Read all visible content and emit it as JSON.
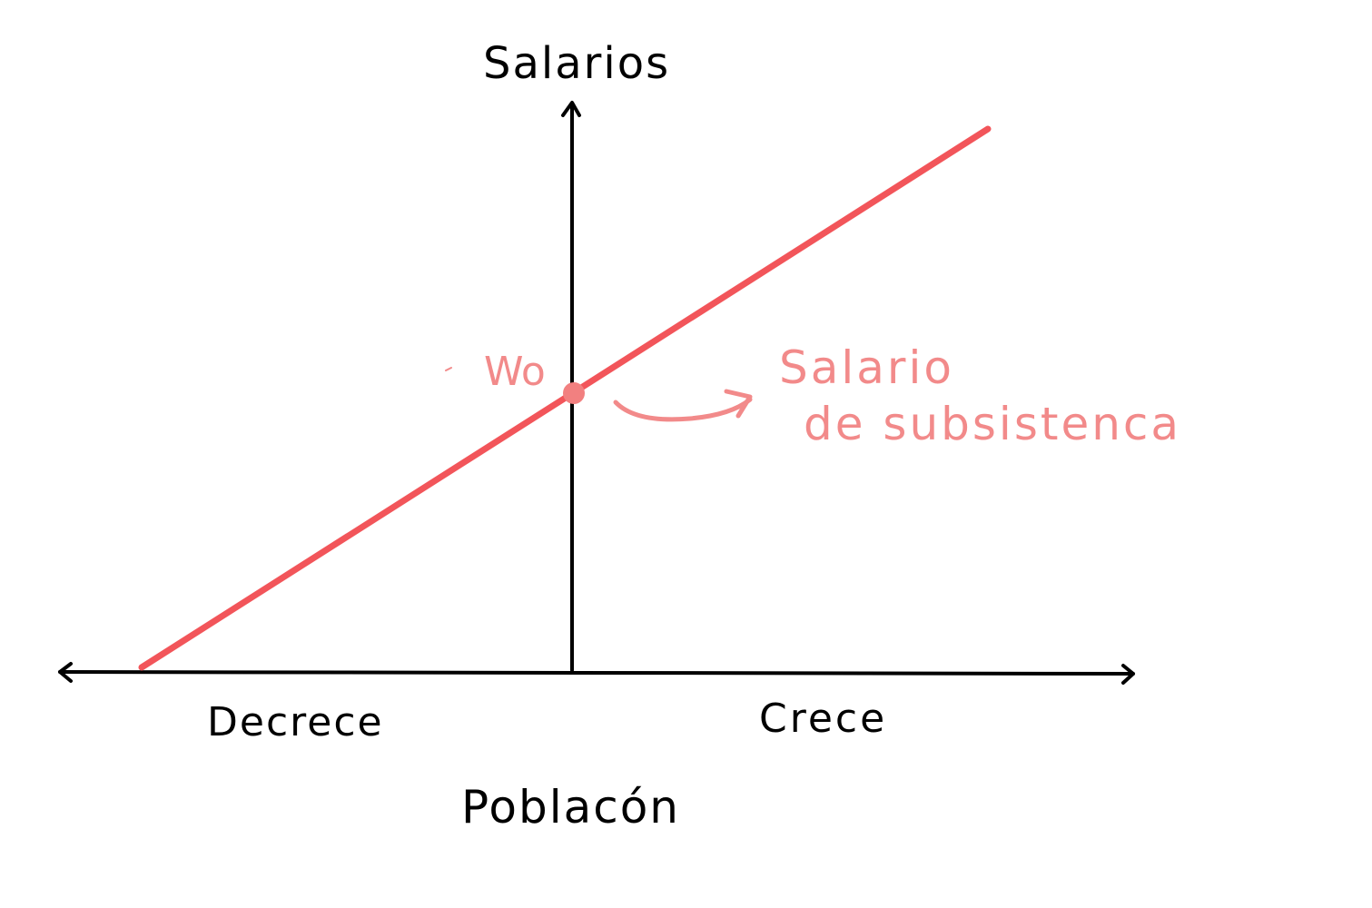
{
  "diagram": {
    "y_axis_label": "Salarios",
    "x_axis_label": "Poblacón",
    "x_left_label": "Decrece",
    "x_right_label": "Crece",
    "point_label": "Wo",
    "annotation_line1": "Salario",
    "annotation_line2": "de subsistenca",
    "colors": {
      "axes": "#000000",
      "line": "#f2555a",
      "annotation": "#f28a8a"
    }
  }
}
